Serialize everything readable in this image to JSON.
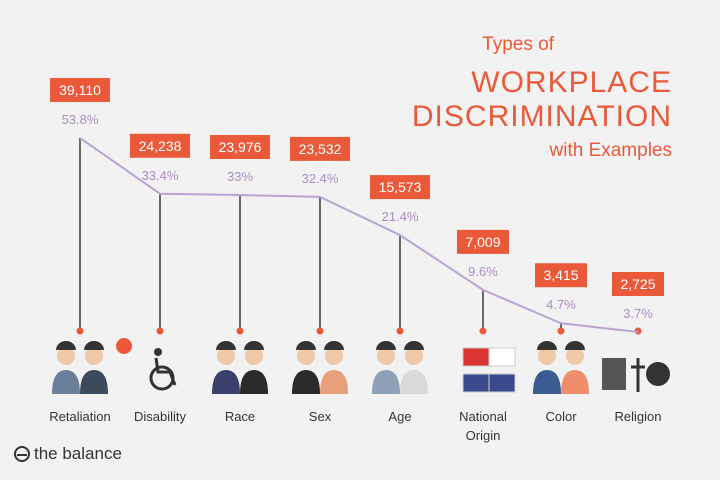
{
  "title": {
    "line1": "Types of",
    "line2": "WORKPLACE",
    "line3": "DISCRIMINATION",
    "line4": "with Examples"
  },
  "logo": {
    "text": "the balance"
  },
  "colors": {
    "accent": "#ea5a3a",
    "line": "#b9a4cf",
    "stem": "#6a6a6a",
    "pct": "#a98fc4"
  },
  "chart_data": {
    "type": "line",
    "title": "Types of Workplace Discrimination with Examples",
    "categories": [
      "Retaliation",
      "Disability",
      "Race",
      "Sex",
      "Age",
      "National Origin",
      "Color",
      "Religion"
    ],
    "values": [
      39110,
      24238,
      23976,
      23532,
      15573,
      7009,
      3415,
      2725
    ],
    "value_labels": [
      "39,110",
      "24,238",
      "23,976",
      "23,532",
      "15,573",
      "7,009",
      "3,415",
      "2,725"
    ],
    "percents": [
      53.8,
      33.4,
      33,
      32.4,
      21.4,
      9.6,
      4.7,
      3.7
    ],
    "percent_labels": [
      "53.8%",
      "33.4%",
      "33%",
      "32.4%",
      "21.4%",
      "9.6%",
      "4.7%",
      "3.7%"
    ],
    "xlabel": "",
    "ylabel": "",
    "grid": false
  }
}
